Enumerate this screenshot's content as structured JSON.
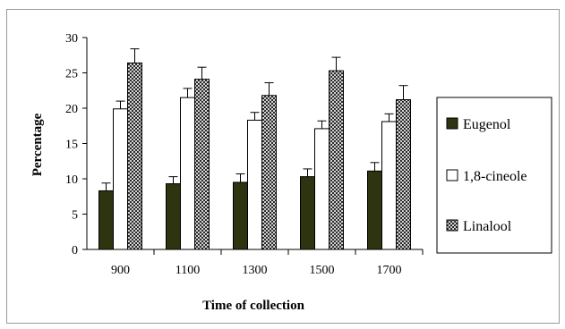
{
  "chart_data": {
    "type": "bar",
    "title": "",
    "xlabel": "Time of collection",
    "ylabel": "Percentage",
    "ylim": [
      0,
      30
    ],
    "yticks": [
      0,
      5,
      10,
      15,
      20,
      25,
      30
    ],
    "categories": [
      "900",
      "1100",
      "1300",
      "1500",
      "1700"
    ],
    "series": [
      {
        "name": "Eugenol",
        "values": [
          8.3,
          9.3,
          9.5,
          10.3,
          11.1
        ],
        "errors": [
          1.1,
          1.0,
          1.2,
          1.1,
          1.2
        ],
        "color": "#2e3410",
        "pattern": "solid"
      },
      {
        "name": "1,8-cineole",
        "values": [
          19.9,
          21.5,
          18.3,
          17.1,
          18.1
        ],
        "errors": [
          1.1,
          1.3,
          1.1,
          1.1,
          1.1
        ],
        "color": "#ffffff",
        "pattern": "none"
      },
      {
        "name": "Linalool",
        "values": [
          26.4,
          24.1,
          21.8,
          25.3,
          21.2
        ],
        "errors": [
          2.0,
          1.7,
          1.8,
          1.9,
          2.0
        ],
        "color": "#ffffff",
        "pattern": "crosshatch"
      }
    ],
    "grid": false,
    "legend_position": "right"
  }
}
